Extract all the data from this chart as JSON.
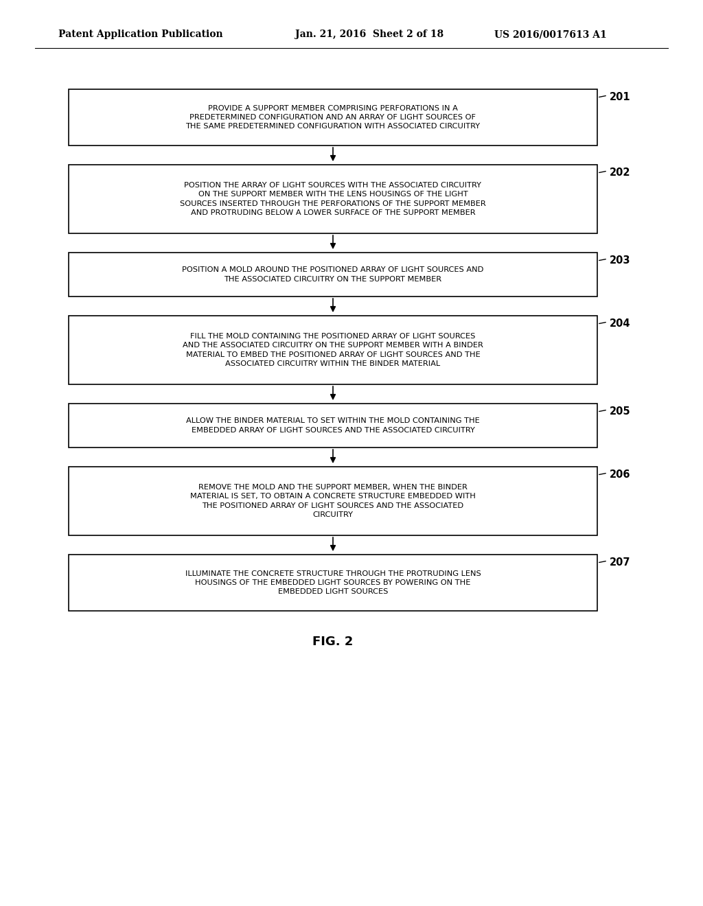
{
  "bg_color": "#ffffff",
  "header_left": "Patent Application Publication",
  "header_mid": "Jan. 21, 2016  Sheet 2 of 18",
  "header_right": "US 2016/0017613 A1",
  "fig_label": "FIG. 2",
  "boxes": [
    {
      "id": 201,
      "lines": [
        "PROVIDE A SUPPORT MEMBER COMPRISING PERFORATIONS IN A",
        "PREDETERMINED CONFIGURATION AND AN ARRAY OF LIGHT SOURCES OF",
        "THE SAME PREDETERMINED CONFIGURATION WITH ASSOCIATED CIRCUITRY"
      ]
    },
    {
      "id": 202,
      "lines": [
        "POSITION THE ARRAY OF LIGHT SOURCES WITH THE ASSOCIATED CIRCUITRY",
        "ON THE SUPPORT MEMBER WITH THE LENS HOUSINGS OF THE LIGHT",
        "SOURCES INSERTED THROUGH THE PERFORATIONS OF THE SUPPORT MEMBER",
        "AND PROTRUDING BELOW A LOWER SURFACE OF THE SUPPORT MEMBER"
      ]
    },
    {
      "id": 203,
      "lines": [
        "POSITION A MOLD AROUND THE POSITIONED ARRAY OF LIGHT SOURCES AND",
        "THE ASSOCIATED CIRCUITRY ON THE SUPPORT MEMBER"
      ]
    },
    {
      "id": 204,
      "lines": [
        "FILL THE MOLD CONTAINING THE POSITIONED ARRAY OF LIGHT SOURCES",
        "AND THE ASSOCIATED CIRCUITRY ON THE SUPPORT MEMBER WITH A BINDER",
        "MATERIAL TO EMBED THE POSITIONED ARRAY OF LIGHT SOURCES AND THE",
        "ASSOCIATED CIRCUITRY WITHIN THE BINDER MATERIAL"
      ]
    },
    {
      "id": 205,
      "lines": [
        "ALLOW THE BINDER MATERIAL TO SET WITHIN THE MOLD CONTAINING THE",
        "EMBEDDED ARRAY OF LIGHT SOURCES AND THE ASSOCIATED CIRCUITRY"
      ]
    },
    {
      "id": 206,
      "lines": [
        "REMOVE THE MOLD AND THE SUPPORT MEMBER, WHEN THE BINDER",
        "MATERIAL IS SET, TO OBTAIN A CONCRETE STRUCTURE EMBEDDED WITH",
        "THE POSITIONED ARRAY OF LIGHT SOURCES AND THE ASSOCIATED",
        "CIRCUITRY"
      ]
    },
    {
      "id": 207,
      "lines": [
        "ILLUMINATE THE CONCRETE STRUCTURE THROUGH THE PROTRUDING LENS",
        "HOUSINGS OF THE EMBEDDED LIGHT SOURCES BY POWERING ON THE",
        "EMBEDDED LIGHT SOURCES"
      ]
    }
  ],
  "box_color": "#ffffff",
  "box_edge_color": "#000000",
  "text_color": "#000000",
  "arrow_color": "#000000"
}
